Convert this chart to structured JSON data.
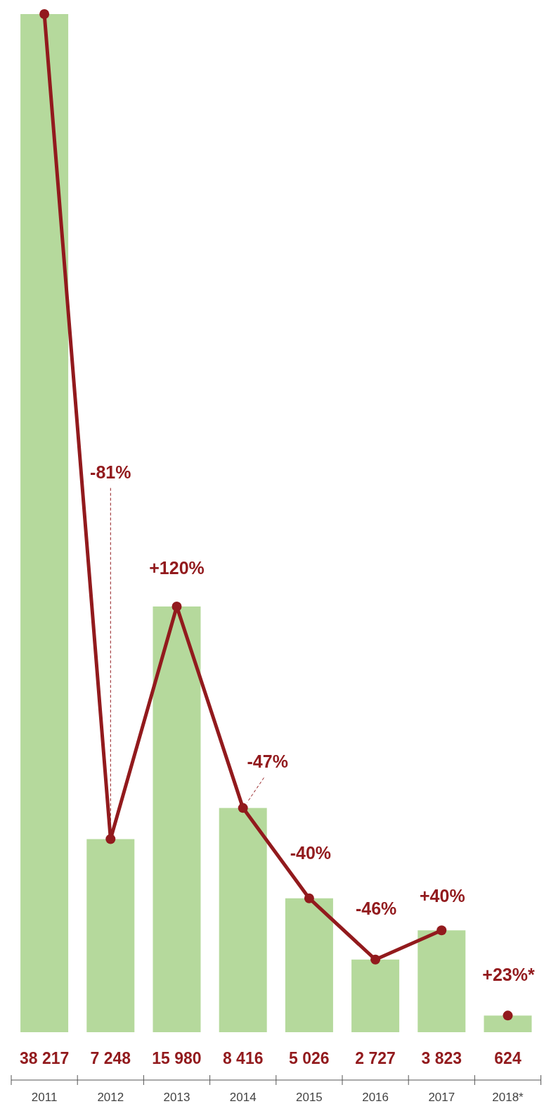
{
  "chart_data": {
    "type": "bar",
    "categories": [
      "2011",
      "2012",
      "2013",
      "2014",
      "2015",
      "2016",
      "2017",
      "2018*"
    ],
    "series": [
      {
        "color": "#b5d99c",
        "values": [
          38217,
          7248,
          15980,
          8416,
          5026,
          2727,
          3823,
          624
        ],
        "value_labels": [
          "38 217",
          "7 248",
          "15 980",
          "8 416",
          "5 026",
          "2 727",
          "3 823",
          "624"
        ]
      },
      {
        "type": "line",
        "color": "#921a1d",
        "marker": "circle",
        "values": [
          38217,
          7248,
          15980,
          8416,
          5026,
          2727,
          3823,
          null
        ]
      },
      {
        "type": "scatter",
        "color": "#921a1d",
        "marker": "circle",
        "x": [
          "2018*"
        ],
        "values": [
          624
        ]
      }
    ],
    "annotations": [
      {
        "text": "-81%",
        "x": "2012",
        "y": 7248
      },
      {
        "text": "+120%",
        "x": "2013",
        "y": 15980
      },
      {
        "text": "-47%",
        "x": "2014",
        "y": 8416
      },
      {
        "text": "-40%",
        "x": "2015",
        "y": 5026
      },
      {
        "text": "-46%",
        "x": "2016",
        "y": 2727
      },
      {
        "text": "+40%",
        "x": "2017",
        "y": 3823
      },
      {
        "text": "+23%*",
        "x": "2018*",
        "y": 624
      }
    ]
  }
}
